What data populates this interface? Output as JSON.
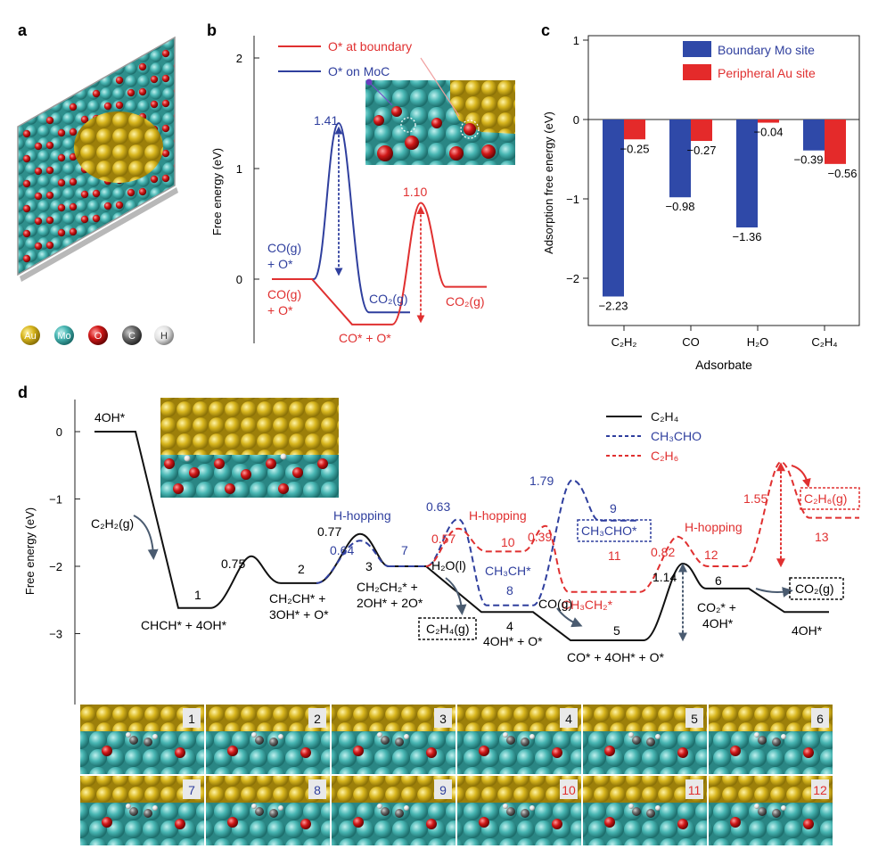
{
  "panel_labels": {
    "a": "a",
    "b": "b",
    "c": "c",
    "d": "d"
  },
  "colors": {
    "blue": "#2f3f9e",
    "red": "#e03030",
    "black": "#111111",
    "au": "#d4b21c",
    "mo": "#48b6b3",
    "o": "#c81818",
    "c": "#555555",
    "h": "#e8e8e8"
  },
  "panel_a": {
    "legend": [
      {
        "symbol": "Au",
        "color_key": "au"
      },
      {
        "symbol": "Mo",
        "color_key": "mo"
      },
      {
        "symbol": "O",
        "color_key": "o"
      },
      {
        "symbol": "C",
        "color_key": "c"
      },
      {
        "symbol": "H",
        "color_key": "h"
      }
    ]
  },
  "panel_b": {
    "ylabel": "Free energy (eV)",
    "ylim": [
      -0.6,
      2.2
    ],
    "yticks": [
      "0",
      "1",
      "2"
    ],
    "legend": [
      {
        "label": "O* at boundary",
        "color_key": "red"
      },
      {
        "label": "O* on MoC",
        "color_key": "blue"
      }
    ],
    "annotations": {
      "blue_barrier": "1.41",
      "red_barrier": "1.10",
      "start_blue_1": "CO(g)",
      "start_blue_2": "+ O*",
      "start_red_1": "CO(g)",
      "start_red_2": "+ O*",
      "mid_red": "CO* + O*",
      "end_blue": "CO₂(g)",
      "end_red": "CO₂(g)"
    },
    "chart_data": {
      "type": "line",
      "title": "",
      "xlabel": "",
      "ylabel": "Free energy (eV)",
      "ylim": [
        -0.6,
        2.2
      ],
      "series": [
        {
          "name": "O* on MoC",
          "color_key": "blue",
          "steps": [
            "CO(g) + O*",
            "TS",
            "CO₂(g)"
          ],
          "values": [
            0,
            1.41,
            -0.3
          ]
        },
        {
          "name": "O* at boundary",
          "color_key": "red",
          "steps": [
            "CO(g) + O*",
            "CO* + O*",
            "TS",
            "CO₂(g)"
          ],
          "values": [
            0,
            -0.41,
            0.69,
            -0.07
          ]
        }
      ],
      "barrier_labels": {
        "O* on MoC": 1.41,
        "O* at boundary": 1.1
      }
    }
  },
  "panel_c": {
    "ylabel": "Adsorption free energy (eV)",
    "xlabel": "Adsorbate",
    "yticks": [
      "1",
      "0",
      "−1",
      "−2"
    ],
    "categories": [
      "C₂H₂",
      "CO",
      "H₂O",
      "C₂H₄"
    ],
    "legend": [
      {
        "label": "Boundary Mo site",
        "color_key": "blue"
      },
      {
        "label": "Peripheral Au site",
        "color_key": "red"
      }
    ],
    "value_labels": {
      "blue": [
        "−2.23",
        "−0.98",
        "−1.36",
        "−0.39"
      ],
      "red": [
        "−0.25",
        "−0.27",
        "−0.04",
        "−0.56"
      ]
    },
    "chart_data": {
      "type": "bar",
      "categories": [
        "C2H2",
        "CO",
        "H2O",
        "C2H4"
      ],
      "series": [
        {
          "name": "Boundary Mo site",
          "values": [
            -2.23,
            -0.98,
            -1.36,
            -0.39
          ]
        },
        {
          "name": "Peripheral Au site",
          "values": [
            -0.25,
            -0.27,
            -0.04,
            -0.56
          ]
        }
      ],
      "title": "",
      "xlabel": "Adsorbate",
      "ylabel": "Adsorption free energy (eV)",
      "ylim": [
        -2.6,
        1.1
      ]
    }
  },
  "panel_d": {
    "ylabel": "Free energy (eV)",
    "yticks": [
      "0",
      "−1",
      "−2",
      "−3"
    ],
    "legend": [
      {
        "label": "C₂H₄",
        "style": "solid",
        "color_key": "black"
      },
      {
        "label": "CH₃CHO",
        "style": "dashed",
        "color_key": "blue"
      },
      {
        "label": "C₂H₆",
        "style": "dashed",
        "color_key": "red"
      }
    ],
    "labels": {
      "s0": "4OH*",
      "gas_c2h2": "C₂H₂(g)",
      "s1": "CHCH* + 4OH*",
      "n1": "1",
      "b1": "0.75",
      "n2": "2",
      "s2a": "CH₂CH* +",
      "s2b": "3OH* + O*",
      "b2": "0.77",
      "hhop_blue": "H-hopping",
      "b2blue": "0.64",
      "n3": "3",
      "s3a": "CH₂CH₂* +",
      "s3b": "2OH* + 2O*",
      "n7": "7",
      "h2o": "H₂O(l)",
      "c2h4g": "C₂H₄(g)",
      "n4": "4",
      "s4": "4OH* + O*",
      "b_blue": "0.63",
      "hhop_red1": "H-hopping",
      "b_red057": "0.57",
      "n10": "10",
      "b_red039": "0.39",
      "ch3ch": "CH₃CH*",
      "n8": "8",
      "b179": "1.79",
      "n9": "9",
      "ch3cho": "CH₃CHO*",
      "n11": "11",
      "ch3ch2": "CH₃CH₂*",
      "cog": "CO(g)",
      "n5": "5",
      "s5": "CO* + 4OH* + O*",
      "b082": "0.82",
      "b114": "1.14",
      "hhop_red2": "H-hopping",
      "n12": "12",
      "n6": "6",
      "s6a": "CO₂* +",
      "s6b": "4OH*",
      "b155": "1.55",
      "c2h6g": "C₂H₆(g)",
      "n13": "13",
      "co2g": "CO₂(g)",
      "s_end": "4OH*"
    },
    "chart_data": {
      "type": "line",
      "ylabel": "Free energy (eV)",
      "ylim": [
        -3.9,
        0.5
      ],
      "series": [
        {
          "name": "C2H4",
          "states": [
            "4OH*",
            "1",
            "2",
            "3",
            "4",
            "5",
            "6",
            "4OH*"
          ],
          "values": [
            0,
            -2.62,
            -2.25,
            -2.0,
            -2.68,
            -3.1,
            -2.33,
            -2.68
          ],
          "barriers": [
            0.75,
            0.77,
            1.14
          ]
        },
        {
          "name": "CH3CHO",
          "states": [
            "3",
            "7",
            "8",
            "9"
          ],
          "values": [
            -2.0,
            -2.0,
            -2.58,
            -1.32
          ],
          "barriers": [
            0.64,
            0.63,
            1.79
          ]
        },
        {
          "name": "C2H6",
          "states": [
            "7",
            "10",
            "11",
            "12",
            "13"
          ],
          "values": [
            -2.0,
            -1.78,
            -2.38,
            -2.0,
            -1.28
          ],
          "barriers": [
            0.57,
            0.39,
            0.82,
            1.55
          ]
        }
      ]
    }
  },
  "snapshots": {
    "row1": [
      "1",
      "2",
      "3",
      "4",
      "5",
      "6"
    ],
    "row2": [
      "7",
      "8",
      "9",
      "10",
      "11",
      "12"
    ]
  }
}
